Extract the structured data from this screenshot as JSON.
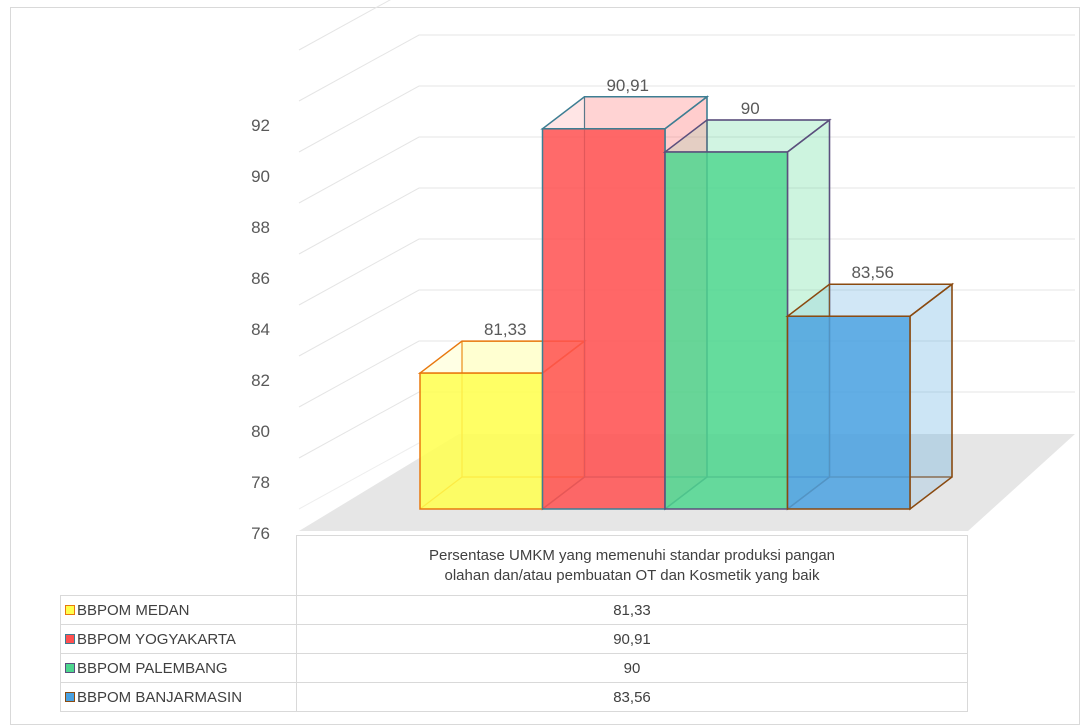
{
  "chart_data": {
    "type": "bar",
    "category": "Persentase UMKM yang memenuhi standar produksi pangan olahan dan/atau pembuatan OT dan Kosmetik yang baik",
    "category_lines": [
      "Persentase UMKM yang memenuhi standar produksi pangan",
      "olahan dan/atau pembuatan OT dan Kosmetik yang baik"
    ],
    "series": [
      {
        "name": "BBPOM  MEDAN",
        "value": 81.33,
        "label": "81,33",
        "color": "#ffff4d",
        "edge": "#e8780f"
      },
      {
        "name": "BBPOM YOGYAKARTA",
        "value": 90.91,
        "label": "90,91",
        "color": "#ff5050",
        "edge": "#3d7e93"
      },
      {
        "name": "BBPOM  PALEMBANG",
        "value": 90,
        "label": "90",
        "color": "#4dd68e",
        "edge": "#5b4f7d"
      },
      {
        "name": "BBPOM  BANJARMASIN",
        "value": 83.56,
        "label": "83,56",
        "color": "#4aa1e0",
        "edge": "#8a4a10"
      }
    ],
    "y_ticks": [
      "76",
      "78",
      "80",
      "82",
      "84",
      "86",
      "88",
      "90",
      "92"
    ],
    "ylim": [
      76,
      94
    ],
    "grid": true,
    "three_d": true,
    "data_table": true
  }
}
